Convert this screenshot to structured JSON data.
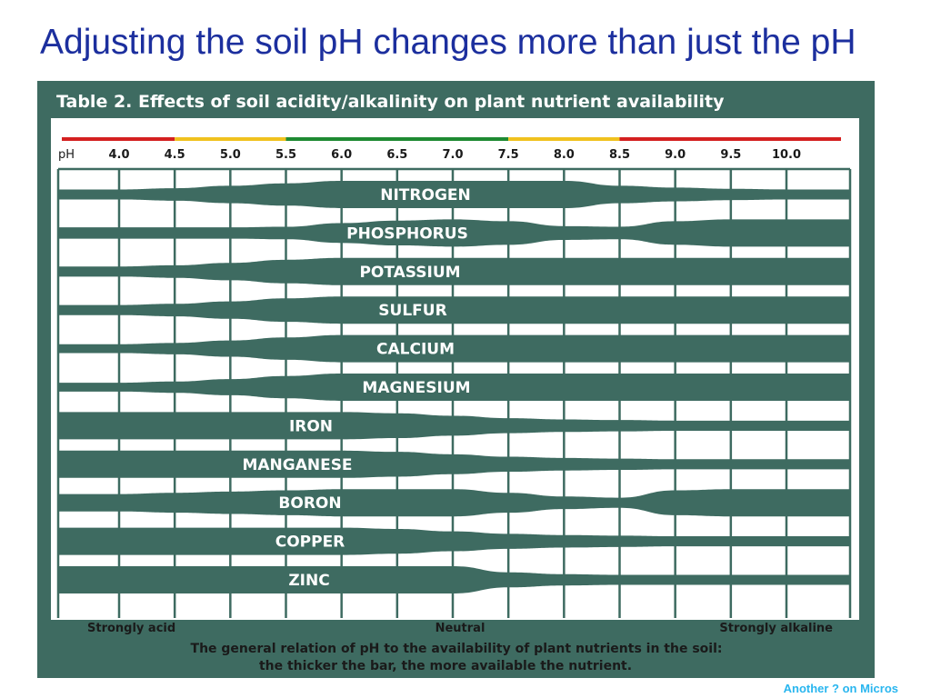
{
  "slide": {
    "title": "Adjusting the soil pH changes more than just the pH",
    "footer_note": "Another ? on Micros"
  },
  "colors": {
    "title": "#1c2f9e",
    "panel": "#3e6b61",
    "bar": "#3e6b61",
    "chart_bg": "#ffffff",
    "footer": "#29b6ef",
    "band_red": "#d42020",
    "band_yellow": "#f0c21e",
    "band_green": "#1e8a32"
  },
  "chart_data": {
    "type": "area",
    "title": "Table 2.  Effects of soil acidity/alkalinity on plant nutrient availability",
    "x_label": "pH",
    "x_ticks": [
      "4.0",
      "4.5",
      "5.0",
      "5.5",
      "6.0",
      "6.5",
      "7.0",
      "7.5",
      "8.0",
      "8.5",
      "9.0",
      "9.5",
      "10.0"
    ],
    "x_range": [
      4.0,
      10.0
    ],
    "color_bands": [
      {
        "from": 4.0,
        "to": 4.5,
        "color": "red"
      },
      {
        "from": 4.5,
        "to": 5.5,
        "color": "yellow"
      },
      {
        "from": 5.5,
        "to": 7.5,
        "color": "green"
      },
      {
        "from": 7.5,
        "to": 8.5,
        "color": "yellow"
      },
      {
        "from": 8.5,
        "to": 10.0,
        "color": "red"
      }
    ],
    "value_scale": "relative availability (bar thickness, 0 to 1)",
    "sample_ph": [
      4.0,
      4.5,
      5.0,
      5.5,
      6.0,
      6.5,
      7.0,
      7.5,
      8.0,
      8.5,
      9.0,
      9.5,
      10.0
    ],
    "series": [
      {
        "name": "NITROGEN",
        "values": [
          0.3,
          0.4,
          0.6,
          0.8,
          1.0,
          1.0,
          1.0,
          1.0,
          1.0,
          0.6,
          0.45,
          0.35,
          0.3
        ]
      },
      {
        "name": "PHOSPHORUS",
        "values": [
          0.35,
          0.35,
          0.35,
          0.4,
          0.7,
          0.9,
          1.0,
          0.85,
          0.45,
          0.4,
          0.85,
          1.0,
          1.0
        ]
      },
      {
        "name": "POTASSIUM",
        "values": [
          0.3,
          0.4,
          0.6,
          0.85,
          1.0,
          1.0,
          1.0,
          1.0,
          1.0,
          1.0,
          1.0,
          1.0,
          1.0
        ]
      },
      {
        "name": "SULFUR",
        "values": [
          0.3,
          0.4,
          0.6,
          0.85,
          1.0,
          1.0,
          1.0,
          1.0,
          1.0,
          1.0,
          1.0,
          1.0,
          1.0
        ]
      },
      {
        "name": "CALCIUM",
        "values": [
          0.25,
          0.35,
          0.55,
          0.8,
          1.0,
          1.0,
          1.0,
          1.0,
          1.0,
          1.0,
          1.0,
          1.0,
          1.0
        ]
      },
      {
        "name": "MAGNESIUM",
        "values": [
          0.25,
          0.35,
          0.55,
          0.8,
          1.0,
          1.0,
          1.0,
          1.0,
          1.0,
          1.0,
          1.0,
          1.0,
          1.0
        ]
      },
      {
        "name": "IRON",
        "values": [
          1.0,
          1.0,
          1.0,
          1.0,
          1.0,
          0.9,
          0.7,
          0.5,
          0.4,
          0.35,
          0.3,
          0.3,
          0.3
        ]
      },
      {
        "name": "MANGANESE",
        "values": [
          1.0,
          1.0,
          1.0,
          1.0,
          1.0,
          0.9,
          0.7,
          0.5,
          0.4,
          0.35,
          0.3,
          0.3,
          0.3
        ]
      },
      {
        "name": "BORON",
        "values": [
          0.6,
          0.7,
          0.8,
          0.9,
          1.0,
          1.0,
          1.0,
          0.7,
          0.4,
          0.3,
          0.9,
          1.0,
          1.0
        ]
      },
      {
        "name": "COPPER",
        "values": [
          1.0,
          1.0,
          1.0,
          1.0,
          1.0,
          0.9,
          0.7,
          0.5,
          0.4,
          0.35,
          0.3,
          0.3,
          0.3
        ]
      },
      {
        "name": "ZINC",
        "values": [
          1.0,
          1.0,
          1.0,
          1.0,
          1.0,
          1.0,
          1.0,
          0.5,
          0.35,
          0.3,
          0.3,
          0.3,
          0.3
        ]
      }
    ],
    "scale_labels": {
      "left": "Strongly acid",
      "center": "Neutral",
      "right": "Strongly alkaline"
    },
    "caption": [
      "The general relation of pH to the availability of plant nutrients in the soil:",
      "the thicker the bar, the more available the nutrient."
    ]
  }
}
